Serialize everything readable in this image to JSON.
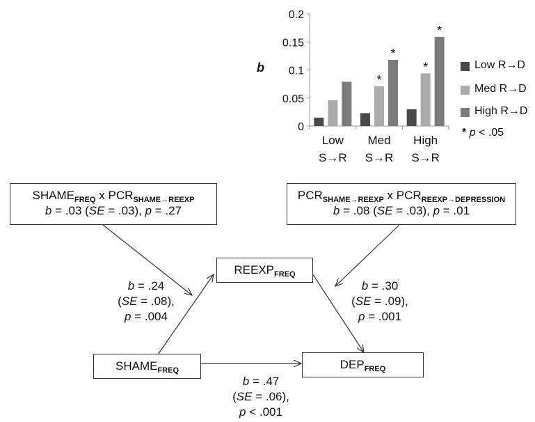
{
  "chart_data": {
    "type": "bar",
    "ylabel": "b",
    "ylim": [
      0,
      0.2
    ],
    "yticks": [
      "0",
      "0.05",
      "0.1",
      "0.15",
      "0.2"
    ],
    "yticks_values": [
      0,
      0.05,
      0.1,
      0.15,
      0.2
    ],
    "categories": [
      {
        "line1": "Low",
        "line2": "S→R"
      },
      {
        "line1": "Med",
        "line2": "S→R"
      },
      {
        "line1": "High",
        "line2": "S→R"
      }
    ],
    "series": [
      {
        "name": "Low R→D",
        "color": "#4a4a4a",
        "values": [
          0.015,
          0.023,
          0.03
        ],
        "sig": [
          false,
          false,
          false
        ]
      },
      {
        "name": "Med R→D",
        "color": "#ababab",
        "values": [
          0.046,
          0.071,
          0.094
        ],
        "sig": [
          false,
          true,
          true
        ]
      },
      {
        "name": "High R→D",
        "color": "#7b7b7b",
        "values": [
          0.079,
          0.118,
          0.159
        ],
        "sig": [
          false,
          true,
          true
        ]
      }
    ],
    "sig_marker": "*",
    "sig_note": {
      "star": "*",
      "p": "p",
      "rest": " < .05"
    },
    "grid": false,
    "legend": "right"
  },
  "diagram": {
    "moderator_left": {
      "line1": {
        "main": "SHAME",
        "sub1": "FREQ",
        "mid": " x PCR",
        "sub2": "SHAME→REEXP"
      },
      "line2": {
        "b": "b",
        "b_val": " = .03 (",
        "se": "SE",
        "se_val": " = .03), ",
        "p": "p",
        "p_val": " = .27"
      }
    },
    "moderator_right": {
      "line1": {
        "main": "PCR",
        "sub1": "SHAME→REEXP",
        "mid": " x PCR",
        "sub2": "REEXP→DEPRESSION"
      },
      "line2": {
        "b": "b",
        "b_val": " = .08 (",
        "se": "SE",
        "se_val": " = .03), ",
        "p": "p",
        "p_val": " = .01"
      }
    },
    "mediator": {
      "main": "REEXP",
      "sub": "FREQ"
    },
    "predictor": {
      "main": "SHAME",
      "sub": "FREQ"
    },
    "outcome": {
      "main": "DEP",
      "sub": "FREQ"
    },
    "path_a": {
      "b": "b",
      "b_val": " = .24",
      "se_open": "(",
      "se": "SE",
      "se_val": " = .08),",
      "p": "p",
      "p_val": " = .004"
    },
    "path_b": {
      "b": "b",
      "b_val": " = .30",
      "se_open": "(",
      "se": "SE",
      "se_val": " = .09),",
      "p": "p",
      "p_val": " = .001"
    },
    "path_c": {
      "b": "b",
      "b_val": " = .47",
      "se_open": "(",
      "se": "SE",
      "se_val": " = .06),",
      "p": "p",
      "p_val": " < .001"
    }
  }
}
